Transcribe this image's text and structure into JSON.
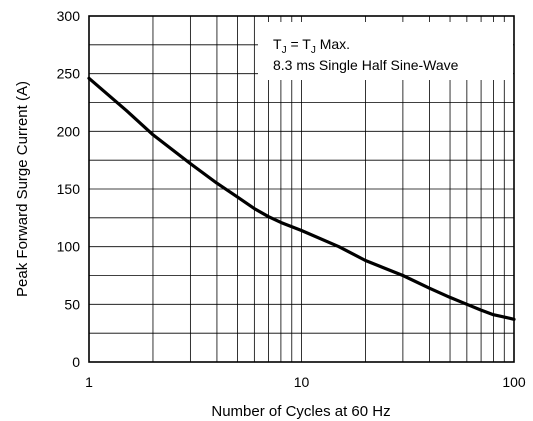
{
  "chart_data": {
    "type": "line",
    "title": "",
    "xlabel": "Number of Cycles at 60 Hz",
    "ylabel": "Peak Forward Surge Current (A)",
    "x_scale": "log",
    "xlim": [
      1,
      100
    ],
    "ylim": [
      0,
      300
    ],
    "x_ticks": [
      "1",
      "10",
      "100"
    ],
    "y_ticks": [
      "0",
      "50",
      "100",
      "150",
      "200",
      "250",
      "300"
    ],
    "grid": true,
    "annotation": {
      "line1_prefix": "T",
      "line1_sub1": "J",
      "line1_mid": " = T",
      "line1_sub2": "J",
      "line1_suffix": " Max.",
      "line2": "8.3 ms Single Half Sine-Wave"
    },
    "series": [
      {
        "x": [
          1,
          1.5,
          2,
          3,
          4,
          5,
          6,
          7,
          8,
          10,
          15,
          20,
          30,
          40,
          50,
          60,
          70,
          80,
          90,
          100
        ],
        "y": [
          246,
          218,
          197,
          172,
          155,
          143,
          133,
          126,
          121,
          114,
          100,
          88,
          75,
          64,
          56,
          50,
          45,
          41,
          39,
          37
        ]
      }
    ]
  }
}
